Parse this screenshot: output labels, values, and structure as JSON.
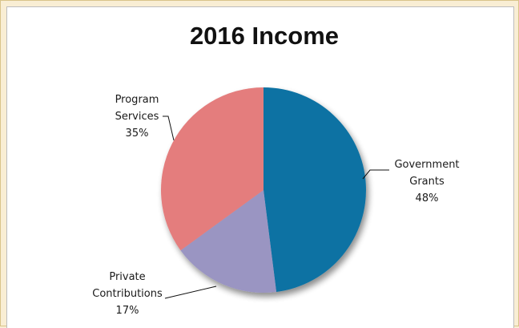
{
  "chart_data": {
    "type": "pie",
    "title": "2016 Income",
    "slices": [
      {
        "label": [
          "Government",
          "Grants"
        ],
        "percent_label": "48%",
        "value": 48,
        "color": "#0d72a3"
      },
      {
        "label": [
          "Private",
          "Contributions"
        ],
        "percent_label": "17%",
        "value": 17,
        "color": "#9a95c2"
      },
      {
        "label": [
          "Program",
          "Services"
        ],
        "percent_label": "35%",
        "value": 35,
        "color": "#e47d7d"
      }
    ],
    "start_angle_deg": 0,
    "direction": "clockwise",
    "legend": "none"
  }
}
